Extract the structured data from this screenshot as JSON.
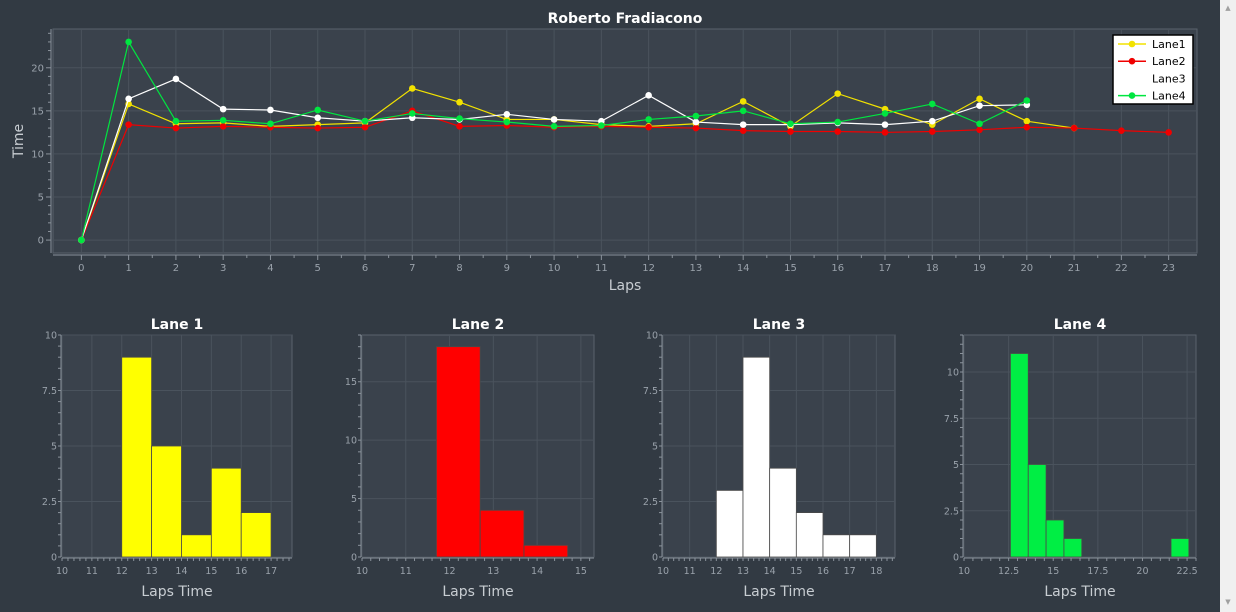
{
  "chart_data": [
    {
      "type": "line",
      "title": "Roberto Fradiacono",
      "xlabel": "Laps",
      "ylabel": "Time",
      "xlim": [
        -0.6,
        23.6
      ],
      "ylim": [
        -1.5,
        24.5
      ],
      "xticks": [
        0,
        1,
        2,
        3,
        4,
        5,
        6,
        7,
        8,
        9,
        10,
        11,
        12,
        13,
        14,
        15,
        16,
        17,
        18,
        19,
        20,
        21,
        22,
        23
      ],
      "yticks": [
        0,
        5,
        10,
        15,
        20
      ],
      "grid": true,
      "legend_position": "top-right",
      "series": [
        {
          "name": "Lane1",
          "color": "#f2e200",
          "x": [
            0,
            1,
            2,
            3,
            4,
            5,
            6,
            7,
            8,
            9,
            10,
            11,
            12,
            13,
            14,
            15,
            16,
            17,
            18,
            19,
            20,
            21
          ],
          "y": [
            0,
            15.8,
            13.5,
            13.6,
            13.2,
            13.4,
            13.6,
            17.6,
            16.0,
            14.0,
            14.0,
            13.4,
            13.2,
            13.5,
            16.1,
            13.2,
            17.0,
            15.2,
            13.4,
            16.4,
            13.8,
            13.0
          ]
        },
        {
          "name": "Lane2",
          "color": "#f00000",
          "x": [
            0,
            1,
            2,
            3,
            4,
            5,
            6,
            7,
            8,
            9,
            10,
            11,
            12,
            13,
            14,
            15,
            16,
            17,
            18,
            19,
            20,
            21,
            22,
            23
          ],
          "y": [
            0,
            13.4,
            13.0,
            13.2,
            13.1,
            13.0,
            13.1,
            15.0,
            13.2,
            13.3,
            13.1,
            13.2,
            13.1,
            13.0,
            12.7,
            12.6,
            12.6,
            12.5,
            12.6,
            12.8,
            13.1,
            13.0,
            12.7,
            12.5
          ]
        },
        {
          "name": "Lane3",
          "color": "#ffffff",
          "x": [
            0,
            1,
            2,
            3,
            4,
            5,
            6,
            7,
            8,
            9,
            10,
            11,
            12,
            13,
            14,
            15,
            16,
            17,
            18,
            19,
            20
          ],
          "y": [
            0,
            16.4,
            18.7,
            15.2,
            15.1,
            14.2,
            13.8,
            14.2,
            14.0,
            14.6,
            14.0,
            13.8,
            16.8,
            13.7,
            13.4,
            13.4,
            13.6,
            13.4,
            13.8,
            15.6,
            15.7
          ]
        },
        {
          "name": "Lane4",
          "color": "#00e640",
          "x": [
            0,
            1,
            2,
            3,
            4,
            5,
            6,
            7,
            8,
            9,
            10,
            11,
            12,
            13,
            14,
            15,
            16,
            17,
            18,
            19,
            20
          ],
          "y": [
            0,
            23.0,
            13.8,
            13.9,
            13.5,
            15.1,
            13.8,
            14.7,
            14.1,
            13.7,
            13.2,
            13.3,
            14.0,
            14.4,
            15.0,
            13.5,
            13.7,
            14.7,
            15.8,
            13.5,
            16.2
          ]
        }
      ]
    },
    {
      "type": "bar",
      "title": "Lane 1",
      "xlabel": "Laps Time",
      "ylabel": "",
      "color": "#ffff00",
      "xlim": [
        10,
        17.7
      ],
      "ylim": [
        0,
        10
      ],
      "xticks": [
        "10",
        "11",
        "12",
        "13",
        "14",
        "15",
        "16",
        "17"
      ],
      "xtick_values": [
        10,
        11,
        12,
        13,
        14,
        15,
        16,
        17
      ],
      "yticks": [
        "0",
        "2.5",
        "5",
        "7.5",
        "10"
      ],
      "ytick_values": [
        0,
        2.5,
        5,
        7.5,
        10
      ],
      "bins": [
        {
          "start": 12.0,
          "end": 13.0,
          "count": 9
        },
        {
          "start": 13.0,
          "end": 14.0,
          "count": 5
        },
        {
          "start": 14.0,
          "end": 15.0,
          "count": 1
        },
        {
          "start": 15.0,
          "end": 16.0,
          "count": 4
        },
        {
          "start": 16.0,
          "end": 17.0,
          "count": 2
        }
      ]
    },
    {
      "type": "bar",
      "title": "Lane 2",
      "xlabel": "Laps Time",
      "ylabel": "",
      "color": "#ff0000",
      "xlim": [
        10,
        15.3
      ],
      "ylim": [
        0,
        19
      ],
      "xticks": [
        "10",
        "11",
        "12",
        "13",
        "14",
        "15"
      ],
      "xtick_values": [
        10,
        11,
        12,
        13,
        14,
        15
      ],
      "yticks": [
        "0",
        "5",
        "10",
        "15"
      ],
      "ytick_values": [
        0,
        5,
        10,
        15
      ],
      "bins": [
        {
          "start": 11.7,
          "end": 12.7,
          "count": 18
        },
        {
          "start": 12.7,
          "end": 13.7,
          "count": 4
        },
        {
          "start": 13.7,
          "end": 14.7,
          "count": 1
        }
      ]
    },
    {
      "type": "bar",
      "title": "Lane 3",
      "xlabel": "Laps Time",
      "ylabel": "",
      "color": "#ffffff",
      "xlim": [
        10,
        18.7
      ],
      "ylim": [
        0,
        10
      ],
      "xticks": [
        "10",
        "11",
        "12",
        "13",
        "14",
        "15",
        "16",
        "17",
        "18"
      ],
      "xtick_values": [
        10,
        11,
        12,
        13,
        14,
        15,
        16,
        17,
        18
      ],
      "yticks": [
        "0",
        "2.5",
        "5",
        "7.5",
        "10"
      ],
      "ytick_values": [
        0,
        2.5,
        5,
        7.5,
        10
      ],
      "bins": [
        {
          "start": 12.0,
          "end": 13.0,
          "count": 3
        },
        {
          "start": 13.0,
          "end": 14.0,
          "count": 9
        },
        {
          "start": 14.0,
          "end": 15.0,
          "count": 4
        },
        {
          "start": 15.0,
          "end": 16.0,
          "count": 2
        },
        {
          "start": 16.0,
          "end": 17.0,
          "count": 1
        },
        {
          "start": 17.0,
          "end": 18.0,
          "count": 1
        }
      ]
    },
    {
      "type": "bar",
      "title": "Lane 4",
      "xlabel": "Laps Time",
      "ylabel": "",
      "color": "#00ee44",
      "xlim": [
        10,
        23.0
      ],
      "ylim": [
        0,
        12
      ],
      "xticks": [
        "10",
        "12.5",
        "15",
        "17.5",
        "20",
        "22.5"
      ],
      "xtick_values": [
        10,
        12.5,
        15,
        17.5,
        20,
        22.5
      ],
      "yticks": [
        "0",
        "2.5",
        "5",
        "7.5",
        "10"
      ],
      "ytick_values": [
        0,
        2.5,
        5,
        7.5,
        10
      ],
      "bins": [
        {
          "start": 12.6,
          "end": 13.6,
          "count": 11
        },
        {
          "start": 13.6,
          "end": 14.6,
          "count": 5
        },
        {
          "start": 14.6,
          "end": 15.6,
          "count": 2
        },
        {
          "start": 15.6,
          "end": 16.6,
          "count": 1
        },
        {
          "start": 21.6,
          "end": 22.6,
          "count": 1
        }
      ]
    }
  ],
  "scrollbar": {
    "up_icon": "triangle-up",
    "down_icon": "triangle-down"
  }
}
